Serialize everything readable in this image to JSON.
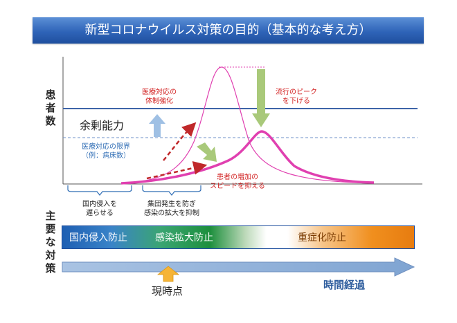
{
  "title": "新型コロナウイルス対策の目的（基本的な考え方）",
  "y_axis_label": "患者数",
  "measures_label": "主要な対策",
  "annotations": {
    "medical_system": "医療対応の\n体制強化",
    "peak_lower": "流行のピーク\nを下げる",
    "spare_capacity": "余剰能力",
    "medical_limit": "医療対応の限界\n（例：病床数）",
    "slow_speed": "患者の増加の\nスピードを抑える"
  },
  "phases": {
    "phase1": "国内侵入を\n遅らせる",
    "phase2": "集団発生を防ぎ\n感染の拡大を抑制"
  },
  "band": {
    "item1": "国内侵入防止",
    "item2": "感染拡大防止",
    "item3": "重症化防止"
  },
  "time_label": "時間経過",
  "now_label": "現時点",
  "colors": {
    "curve": "#e040b0",
    "capacity_line": "#3e64a8",
    "limit_line": "#6f92c8",
    "red_arrow": "#c0282a",
    "green_arrow": "#a9c97a",
    "blue_arrow": "#9fc0e4",
    "timeline": "#8fb0d8",
    "now_arrow": "#f6b436"
  }
}
